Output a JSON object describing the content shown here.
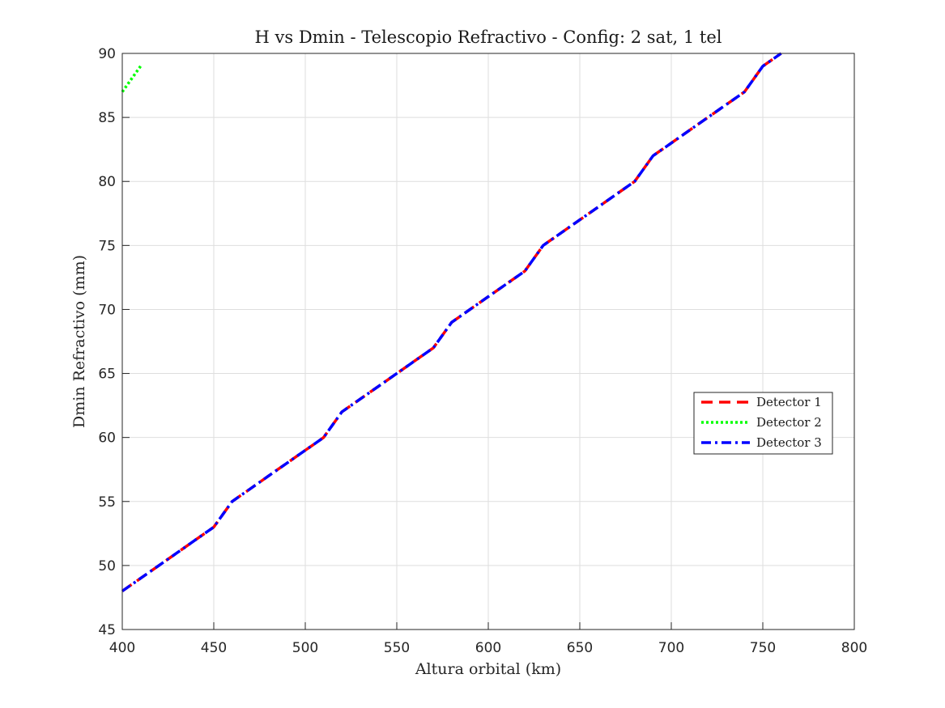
{
  "chart_data": {
    "type": "line",
    "title": "H vs Dmin - Telescopio Refractivo - Config: 2 sat, 1 tel",
    "xlabel": "Altura orbital (km)",
    "ylabel": "Dmin Refractivo (mm)",
    "xlim": [
      400,
      800
    ],
    "ylim": [
      45,
      90
    ],
    "xticks": [
      400,
      450,
      500,
      550,
      600,
      650,
      700,
      750,
      800
    ],
    "yticks": [
      45,
      50,
      55,
      60,
      65,
      70,
      75,
      80,
      85,
      90
    ],
    "grid": true,
    "legend_position": "right",
    "series": [
      {
        "name": "Detector 1",
        "color": "#ff0000",
        "style": "dashed",
        "x": [
          400,
          410,
          420,
          430,
          440,
          450,
          460,
          470,
          480,
          490,
          500,
          510,
          520,
          530,
          540,
          550,
          560,
          570,
          580,
          590,
          600,
          610,
          620,
          630,
          640,
          650,
          660,
          670,
          680,
          690,
          700,
          710,
          720,
          730,
          740,
          750,
          760
        ],
        "y": [
          48,
          49,
          50,
          51,
          52,
          53,
          55,
          56,
          57,
          58,
          59,
          60,
          62,
          63,
          64,
          65,
          66,
          67,
          69,
          70,
          71,
          72,
          73,
          75,
          76,
          77,
          78,
          79,
          80,
          82,
          83,
          84,
          85,
          86,
          87,
          89,
          90
        ]
      },
      {
        "name": "Detector 2",
        "color": "#00ff00",
        "style": "dotted",
        "x": [
          400,
          410
        ],
        "y": [
          87,
          89
        ]
      },
      {
        "name": "Detector 3",
        "color": "#0000ff",
        "style": "dashdot",
        "x": [
          400,
          410,
          420,
          430,
          440,
          450,
          460,
          470,
          480,
          490,
          500,
          510,
          520,
          530,
          540,
          550,
          560,
          570,
          580,
          590,
          600,
          610,
          620,
          630,
          640,
          650,
          660,
          670,
          680,
          690,
          700,
          710,
          720,
          730,
          740,
          750,
          760
        ],
        "y": [
          48,
          49,
          50,
          51,
          52,
          53,
          55,
          56,
          57,
          58,
          59,
          60,
          62,
          63,
          64,
          65,
          66,
          67,
          69,
          70,
          71,
          72,
          73,
          75,
          76,
          77,
          78,
          79,
          80,
          82,
          83,
          84,
          85,
          86,
          87,
          89,
          90
        ]
      }
    ]
  }
}
